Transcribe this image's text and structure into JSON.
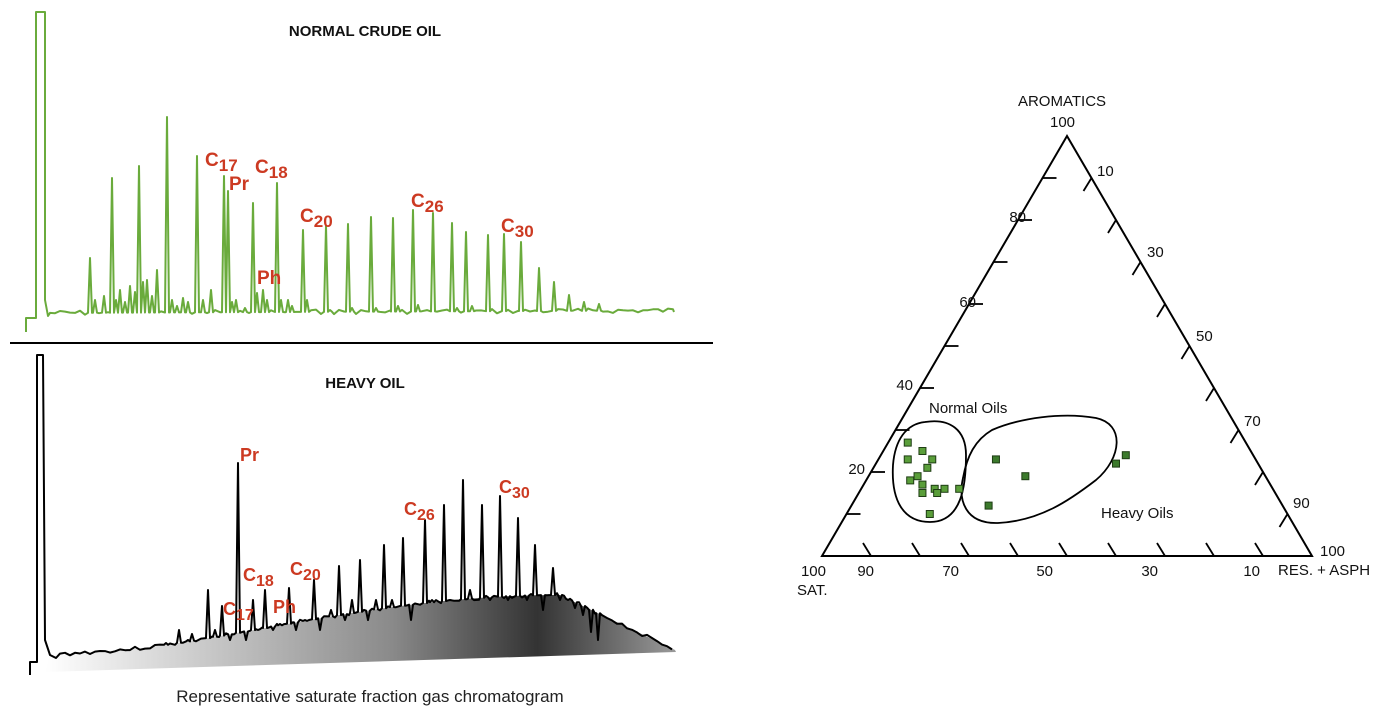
{
  "chart_data": [
    {
      "type": "line",
      "title": "NORMAL CRUDE OIL",
      "color": "#6aab3c",
      "peak_labels": [
        {
          "base": "C",
          "sub": "17"
        },
        {
          "base": "Pr",
          "sub": ""
        },
        {
          "base": "C",
          "sub": "18"
        },
        {
          "base": "Ph",
          "sub": ""
        },
        {
          "base": "C",
          "sub": "20"
        },
        {
          "base": "C",
          "sub": "26"
        },
        {
          "base": "C",
          "sub": "30"
        }
      ]
    },
    {
      "type": "line",
      "title": "HEAVY OIL",
      "color": "#000000",
      "fill": "gradient gray hump (unresolved complex mixture)",
      "peak_labels": [
        {
          "base": "Pr",
          "sub": ""
        },
        {
          "base": "C",
          "sub": "18"
        },
        {
          "base": "C",
          "sub": "17"
        },
        {
          "base": "Ph",
          "sub": ""
        },
        {
          "base": "C",
          "sub": "20"
        },
        {
          "base": "C",
          "sub": "26"
        },
        {
          "base": "C",
          "sub": "30"
        }
      ]
    },
    {
      "type": "scatter",
      "subtype": "ternary",
      "axes": {
        "top": "AROMATICS",
        "left": "SAT.",
        "right": "RES. + ASPH"
      },
      "left_ticks": [
        "100",
        "80",
        "60",
        "40",
        "20"
      ],
      "right_ticks": [
        "10",
        "30",
        "50",
        "70",
        "90",
        "100"
      ],
      "bottom_ticks": [
        "100",
        "90",
        "70",
        "50",
        "30",
        "10"
      ],
      "groups": [
        {
          "name": "Normal Oils",
          "color": "#5a9e3a",
          "points": [
            {
              "sat": 69,
              "aro": 27,
              "res": 4
            },
            {
              "sat": 67,
              "aro": 25,
              "res": 8
            },
            {
              "sat": 71,
              "aro": 23,
              "res": 6
            },
            {
              "sat": 66,
              "aro": 23,
              "res": 11
            },
            {
              "sat": 68,
              "aro": 21,
              "res": 11
            },
            {
              "sat": 71,
              "aro": 19,
              "res": 10
            },
            {
              "sat": 73,
              "aro": 18,
              "res": 9
            },
            {
              "sat": 71,
              "aro": 17,
              "res": 12
            },
            {
              "sat": 69,
              "aro": 16,
              "res": 15
            },
            {
              "sat": 67,
              "aro": 16,
              "res": 17
            },
            {
              "sat": 64,
              "aro": 16,
              "res": 20
            },
            {
              "sat": 72,
              "aro": 15,
              "res": 13
            },
            {
              "sat": 69,
              "aro": 15,
              "res": 16
            },
            {
              "sat": 73,
              "aro": 10,
              "res": 17
            }
          ]
        },
        {
          "name": "Heavy Oils",
          "color": "#3c7a2c",
          "points": [
            {
              "sat": 53,
              "aro": 23,
              "res": 24
            },
            {
              "sat": 49,
              "aro": 19,
              "res": 32
            },
            {
              "sat": 26,
              "aro": 24,
              "res": 50
            },
            {
              "sat": 29,
              "aro": 22,
              "res": 49
            },
            {
              "sat": 60,
              "aro": 12,
              "res": 28
            }
          ]
        }
      ]
    }
  ],
  "caption": "Representative saturate fraction gas chromatogram"
}
